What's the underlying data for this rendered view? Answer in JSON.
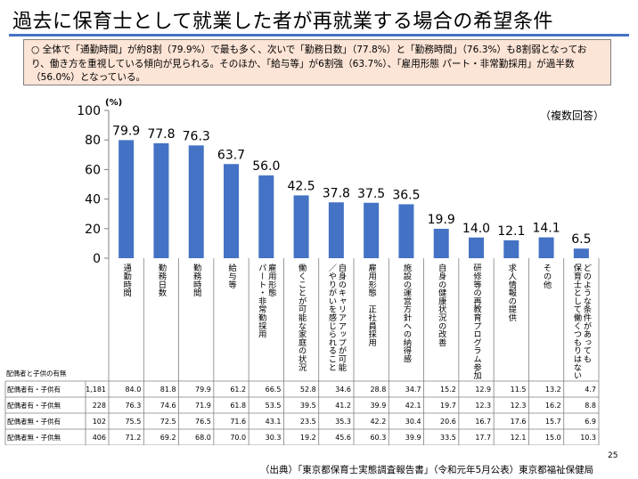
{
  "title": "過去に保育士として就業した者が再就業する場合の希望条件",
  "summary": "○ 全体で「通勤時間」が約8割（79.9%）で最も多く、次いで「勤務日数」（77.8%）と「勤務時間」（76.3%）も8割弱となっており、働き方を重視している傾向が見られる。そのほか、「給与等」が6割強（63.7%）、「雇用形態 パート・非常勤採用」が過半数（56.0%）となっている。",
  "note": "（複数回答）",
  "chart_data": {
    "type": "bar",
    "ylabel": "(%)",
    "ylim": [
      0,
      100
    ],
    "yticks": [
      0,
      20,
      40,
      60,
      80,
      100
    ],
    "grid": false,
    "bar_color": "#4472c4",
    "categories": [
      "通勤時間",
      "勤務日数",
      "勤務時間",
      "給与等",
      "雇用形態\nパート・非常勤採用",
      "働くことが可能な家庭の状況",
      "自身のキャリアアップが可能\n／やりがいを感じられること",
      "雇用形態　正社員採用",
      "施設の運営方針への納得感",
      "自身の健康状況の改善",
      "研修等の再教育プログラム参加",
      "求人情報の提供",
      "その他",
      "どのような条件があっても\n保育士として働くつもりはない"
    ],
    "values": [
      79.9,
      77.8,
      76.3,
      63.7,
      56.0,
      42.5,
      37.8,
      37.5,
      36.5,
      19.9,
      14.0,
      12.1,
      14.1,
      6.5
    ]
  },
  "table": {
    "header": "配偶者と子供の有無",
    "rows": [
      {
        "label": "配偶者有・子供有",
        "n": "1,181",
        "values": [
          "84.0",
          "81.8",
          "79.9",
          "61.2",
          "66.5",
          "52.8",
          "34.6",
          "28.8",
          "34.7",
          "15.2",
          "12.9",
          "11.5",
          "13.2",
          "4.7"
        ]
      },
      {
        "label": "配偶者有・子供無",
        "n": "228",
        "values": [
          "76.3",
          "74.6",
          "71.9",
          "61.8",
          "53.5",
          "39.5",
          "41.2",
          "39.9",
          "42.1",
          "19.7",
          "12.3",
          "12.3",
          "16.2",
          "8.8"
        ]
      },
      {
        "label": "配偶者無・子供有",
        "n": "102",
        "values": [
          "75.5",
          "72.5",
          "76.5",
          "71.6",
          "43.1",
          "23.5",
          "35.3",
          "42.2",
          "30.4",
          "20.6",
          "16.7",
          "17.6",
          "15.7",
          "6.9"
        ]
      },
      {
        "label": "配偶者無・子供無",
        "n": "406",
        "values": [
          "71.2",
          "69.2",
          "68.0",
          "70.0",
          "30.3",
          "19.2",
          "45.6",
          "60.3",
          "39.9",
          "33.5",
          "17.7",
          "12.1",
          "15.0",
          "10.3"
        ]
      }
    ]
  },
  "source": "（出典）「東京都保育士実態調査報告書」（令和元年5月公表）東京都福祉保健局",
  "page_number": "25"
}
